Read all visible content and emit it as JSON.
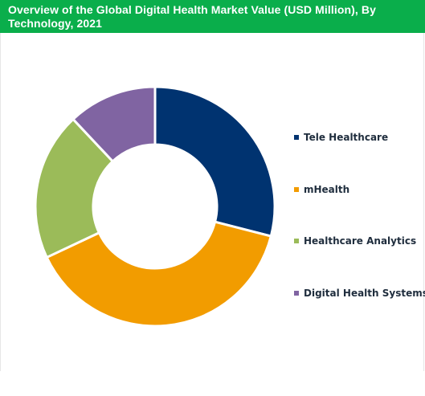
{
  "title": "Overview of the Global Digital Health Market Value (USD Million), By Technology, 2021",
  "colors": {
    "title_background": "#0aae4b",
    "title_text": "#ffffff"
  },
  "chart_data": {
    "type": "pie",
    "variant": "donut",
    "title": "Overview of the Global Digital Health Market Value (USD Million), By Technology, 2021",
    "legend_position": "right",
    "slices": [
      {
        "label": "Tele Healthcare",
        "value": 29,
        "color": "#003370"
      },
      {
        "label": "mHealth",
        "value": 39,
        "color": "#f29c00"
      },
      {
        "label": "Healthcare Analytics",
        "value": 20,
        "color": "#9bbb59"
      },
      {
        "label": "Digital Health Systems",
        "value": 12,
        "color": "#8064a2"
      }
    ]
  }
}
